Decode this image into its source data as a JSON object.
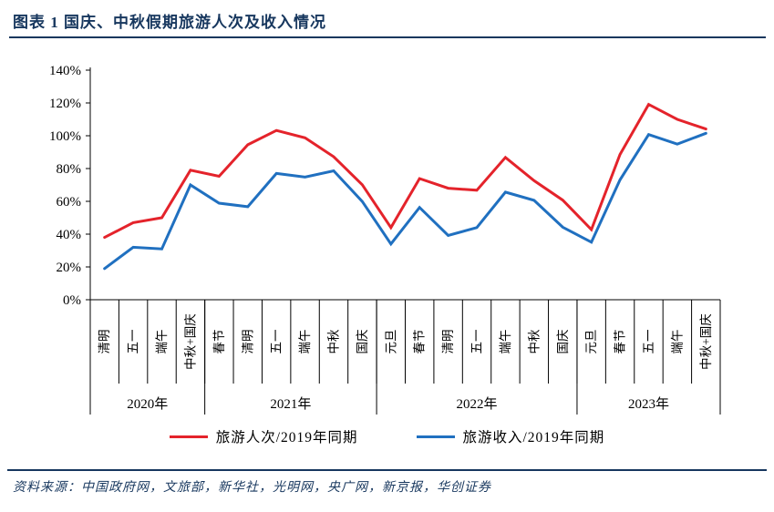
{
  "header": {
    "title": "图表 1 国庆、中秋假期旅游人次及收入情况"
  },
  "chart_data": {
    "type": "line",
    "title": "国庆、中秋假期旅游人次及收入情况",
    "grid": false,
    "legend_position": "bottom",
    "ylim": [
      0,
      140
    ],
    "y_ticks": [
      "140%",
      "120%",
      "100%",
      "80%",
      "60%",
      "40%",
      "20%",
      "0%"
    ],
    "categories": [
      "清明",
      "五一",
      "端午",
      "中秋+国庆",
      "春节",
      "清明",
      "五一",
      "端午",
      "中秋",
      "国庆",
      "元旦",
      "春节",
      "清明",
      "五一",
      "端午",
      "中秋",
      "国庆",
      "元旦",
      "春节",
      "五一",
      "端午",
      "中秋+国庆"
    ],
    "year_groups": [
      {
        "label": "2020年",
        "span": 4
      },
      {
        "label": "2021年",
        "span": 6
      },
      {
        "label": "2022年",
        "span": 7
      },
      {
        "label": "2023年",
        "span": 5
      }
    ],
    "series": [
      {
        "name": "旅游人次/2019年同期",
        "color": "#E4232B",
        "values": [
          38,
          47,
          50,
          79,
          75.3,
          94.5,
          103.2,
          98.7,
          87.2,
          70.1,
          44,
          73.9,
          68,
          66.8,
          86.8,
          72.6,
          60.7,
          42.8,
          88.6,
          119.1,
          110,
          104.1
        ]
      },
      {
        "name": "旅游收入/2019年同期",
        "color": "#2070C0",
        "values": [
          19,
          32,
          31,
          70,
          58.9,
          56.7,
          77,
          74.8,
          78.6,
          59.9,
          34,
          56.3,
          39.2,
          44,
          65.6,
          60.6,
          44.2,
          35.1,
          73.1,
          100.7,
          94.9,
          101.5
        ]
      }
    ]
  },
  "footer": {
    "source": "资料来源：中国政府网，文旅部，新华社，光明网，央广网，新京报，华创证券"
  },
  "colors": {
    "accent": "#17375E",
    "axis": "#000000",
    "red": "#E4232B",
    "blue": "#2070C0"
  }
}
